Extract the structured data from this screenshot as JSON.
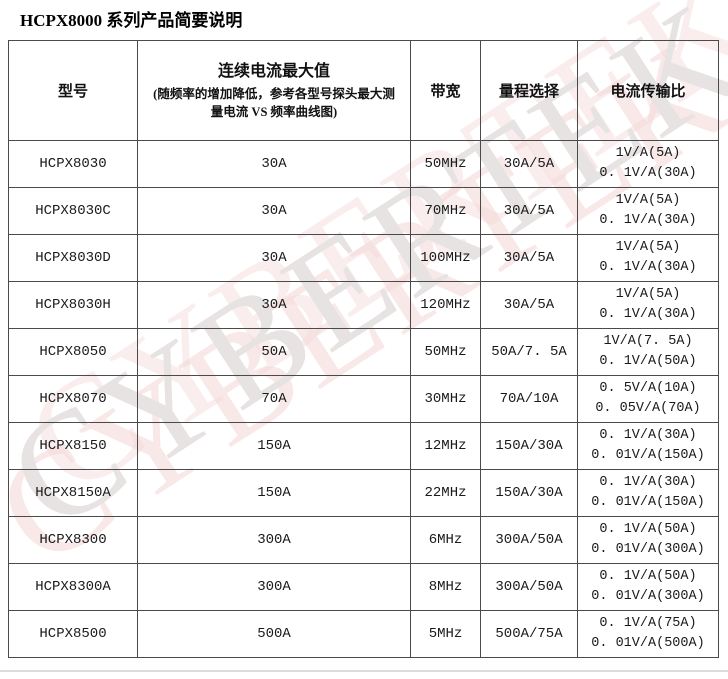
{
  "page": {
    "title": "HCPX8000 系列产品简要说明"
  },
  "watermark": {
    "text": "CYBERTEK",
    "color": "#e7e3e3",
    "tint": "#f3d6d6"
  },
  "table": {
    "headers": {
      "model": "型号",
      "max_current_title": "连续电流最大值",
      "max_current_note": "(随频率的增加降低，参考各型号探头最大测量电流 VS 频率曲线图)",
      "bandwidth": "带宽",
      "range": "量程选择",
      "transfer_ratio": "电流传输比"
    },
    "rows": [
      {
        "model": "HCPX8030",
        "max_current": "30A",
        "bandwidth": "50MHz",
        "range": "30A/5A",
        "ratio": "1V/A(5A)\n0. 1V/A(30A)"
      },
      {
        "model": "HCPX8030C",
        "max_current": "30A",
        "bandwidth": "70MHz",
        "range": "30A/5A",
        "ratio": "1V/A(5A)\n0. 1V/A(30A)"
      },
      {
        "model": "HCPX8030D",
        "max_current": "30A",
        "bandwidth": "100MHz",
        "range": "30A/5A",
        "ratio": "1V/A(5A)\n0. 1V/A(30A)"
      },
      {
        "model": "HCPX8030H",
        "max_current": "30A",
        "bandwidth": "120MHz",
        "range": "30A/5A",
        "ratio": "1V/A(5A)\n0. 1V/A(30A)"
      },
      {
        "model": "HCPX8050",
        "max_current": "50A",
        "bandwidth": "50MHz",
        "range": "50A/7. 5A",
        "ratio": "1V/A(7. 5A)\n0. 1V/A(50A)"
      },
      {
        "model": "HCPX8070",
        "max_current": "70A",
        "bandwidth": "30MHz",
        "range": "70A/10A",
        "ratio": "0. 5V/A(10A)\n0. 05V/A(70A)"
      },
      {
        "model": "HCPX8150",
        "max_current": "150A",
        "bandwidth": "12MHz",
        "range": "150A/30A",
        "ratio": "0. 1V/A(30A)\n0. 01V/A(150A)"
      },
      {
        "model": "HCPX8150A",
        "max_current": "150A",
        "bandwidth": "22MHz",
        "range": "150A/30A",
        "ratio": "0. 1V/A(30A)\n0. 01V/A(150A)"
      },
      {
        "model": "HCPX8300",
        "max_current": "300A",
        "bandwidth": "6MHz",
        "range": "300A/50A",
        "ratio": "0. 1V/A(50A)\n0. 01V/A(300A)"
      },
      {
        "model": "HCPX8300A",
        "max_current": "300A",
        "bandwidth": "8MHz",
        "range": "300A/50A",
        "ratio": "0. 1V/A(50A)\n0. 01V/A(300A)"
      },
      {
        "model": "HCPX8500",
        "max_current": "500A",
        "bandwidth": "5MHz",
        "range": "500A/75A",
        "ratio": "0. 1V/A(75A)\n0. 01V/A(500A)"
      }
    ]
  }
}
